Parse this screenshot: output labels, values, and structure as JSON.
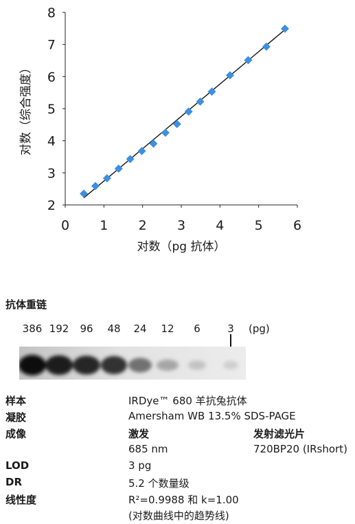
{
  "chart_data": {
    "type": "scatter",
    "xlabel": "对数（pg 抗体）",
    "ylabel": "对数（综合强度）",
    "xlim": [
      0,
      6
    ],
    "ylim": [
      2,
      8
    ],
    "x_ticks": [
      "0",
      "1",
      "2",
      "3",
      "4",
      "5",
      "6"
    ],
    "y_ticks": [
      "2",
      "3",
      "4",
      "5",
      "6",
      "7",
      "8"
    ],
    "grid": false,
    "marker_color": "#3d8fe0",
    "line_color": "#111111",
    "points": [
      {
        "x": 0.48,
        "y": 2.35
      },
      {
        "x": 0.78,
        "y": 2.59
      },
      {
        "x": 1.08,
        "y": 2.83
      },
      {
        "x": 1.38,
        "y": 3.13
      },
      {
        "x": 1.68,
        "y": 3.43
      },
      {
        "x": 1.98,
        "y": 3.68
      },
      {
        "x": 2.28,
        "y": 3.91
      },
      {
        "x": 2.59,
        "y": 4.25
      },
      {
        "x": 2.89,
        "y": 4.52
      },
      {
        "x": 3.19,
        "y": 4.91
      },
      {
        "x": 3.49,
        "y": 5.22
      },
      {
        "x": 3.79,
        "y": 5.53
      },
      {
        "x": 4.26,
        "y": 6.04
      },
      {
        "x": 4.73,
        "y": 6.51
      },
      {
        "x": 5.2,
        "y": 6.93
      },
      {
        "x": 5.68,
        "y": 7.49
      }
    ],
    "trendline": {
      "x": [
        0.48,
        5.68
      ],
      "y": [
        2.22,
        7.46
      ]
    }
  },
  "blot": {
    "title": "抗体重链",
    "lanes": [
      "386",
      "192",
      "96",
      "48",
      "24",
      "12",
      "6",
      "3"
    ],
    "unit": "(pg)",
    "band_intensity": [
      1.0,
      0.92,
      0.86,
      0.8,
      0.5,
      0.24,
      0.1,
      0.04
    ]
  },
  "info": {
    "sample_label": "样本",
    "sample_value": "IRDye™ 680 羊抗兔抗体",
    "gel_label": "凝胶",
    "gel_value": "Amersham WB 13.5% SDS-PAGE",
    "imaging_label": "成像",
    "excitation_header": "激发",
    "filter_header": "发射滤光片",
    "excitation_value": "685 nm",
    "filter_value": "720BP20 (IRshort)",
    "lod_label": "LOD",
    "lod_value": "3 pg",
    "dr_label": "DR",
    "dr_value": "5.2 个数量级",
    "linearity_label": "线性度",
    "linearity_value": "R²=0.9988 和 k=1.00",
    "linearity_note": "(对数曲线中的趋势线)"
  }
}
